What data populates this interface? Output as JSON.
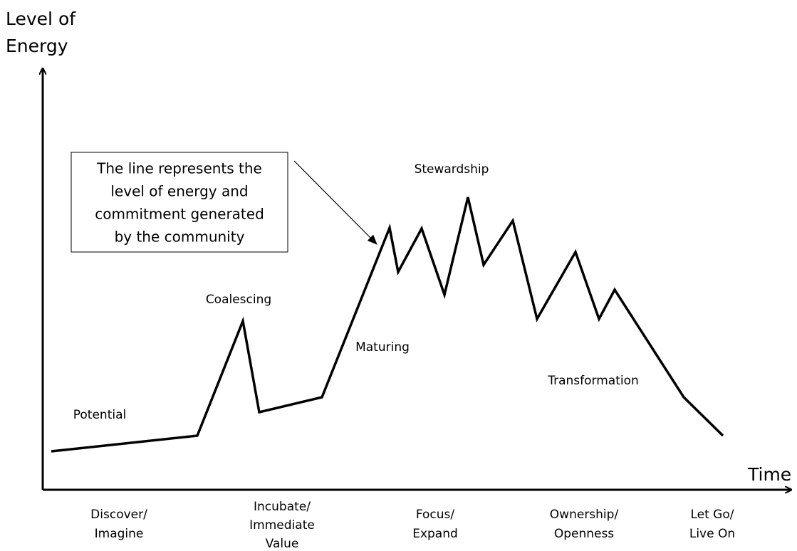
{
  "y_axis_label": [
    "Level of",
    "Energy"
  ],
  "x_axis_label": "Time",
  "callout": [
    "The line represents the",
    "level of energy and",
    "commitment generated",
    "by the community"
  ],
  "stages": [
    "Potential",
    "Coalescing",
    "Maturing",
    "Stewardship",
    "Transformation"
  ],
  "phases": [
    [
      "Discover/",
      "Imagine"
    ],
    [
      "Incubate/",
      "Immediate",
      "Value"
    ],
    [
      "Focus/",
      "Expand"
    ],
    [
      "Ownership/",
      "Openness"
    ],
    [
      "Let Go/",
      "Live On"
    ]
  ]
}
